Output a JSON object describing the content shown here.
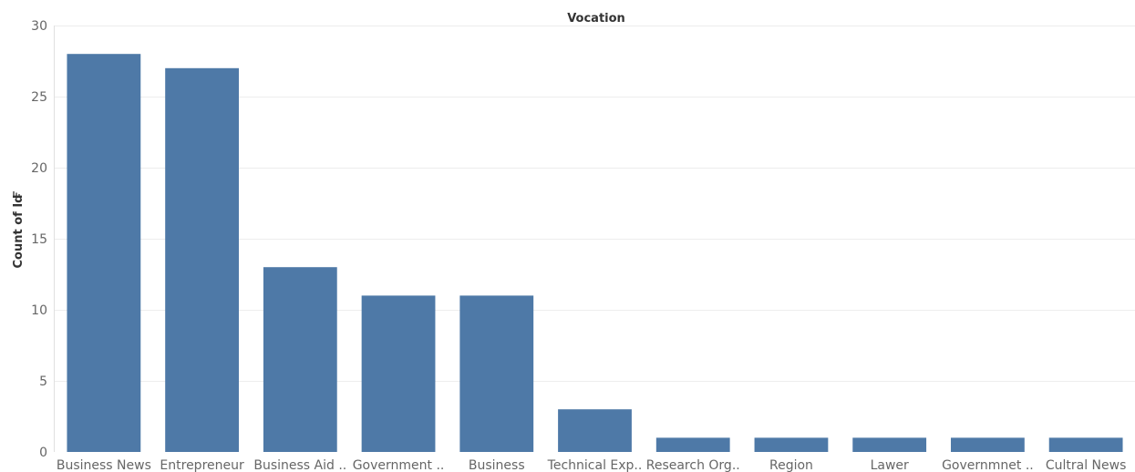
{
  "chart_data": {
    "type": "bar",
    "title": "Vocation",
    "xlabel": "",
    "ylabel": "Count of Id",
    "ylabel_icon": "sort-descending-icon",
    "categories": [
      "Business News",
      "Entrepreneur",
      "Business Aid ..",
      "Government ..",
      "Business",
      "Technical Exp..",
      "Research Org..",
      "Region",
      "Lawer",
      "Governmnet ..",
      "Cultral News"
    ],
    "values": [
      28,
      27,
      13,
      11,
      11,
      3,
      1,
      1,
      1,
      1,
      1
    ],
    "ylim": [
      0,
      30
    ],
    "yticks": [
      0,
      5,
      10,
      15,
      20,
      25,
      30
    ],
    "grid": true,
    "legend": "none",
    "colors": {
      "bar": "#4e79a7"
    }
  }
}
